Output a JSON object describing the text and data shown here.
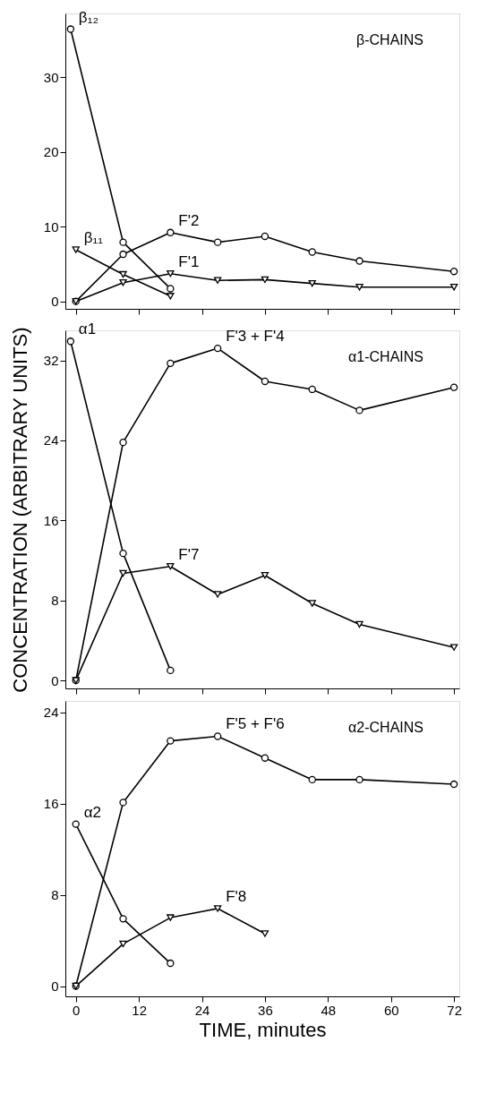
{
  "chart_data": [
    {
      "type": "line",
      "annotations": [
        "β-CHAINS"
      ],
      "xlim": [
        -2,
        73
      ],
      "xticks": [
        0,
        12,
        24,
        36,
        48,
        60,
        72
      ],
      "ylim": [
        -1,
        38.5
      ],
      "yticks": [
        0,
        10,
        20,
        30
      ],
      "tick_labels": "y",
      "line_style": "solid",
      "marker": "circle",
      "series": [
        {
          "name": "β₁₂",
          "color": "#000000",
          "x": [
            -1,
            9,
            18
          ],
          "values": [
            36.4,
            7.9,
            1.7
          ]
        },
        {
          "name": "β₁₁",
          "color": "#000000",
          "marker": "triangle",
          "x": [
            0,
            9,
            18
          ],
          "values": [
            6.9,
            3.6,
            0.7
          ]
        },
        {
          "name": "F'2",
          "color": "#000000",
          "x": [
            0,
            9,
            18,
            27,
            36,
            45,
            54,
            72
          ],
          "values": [
            0,
            6.3,
            9.2,
            7.9,
            8.7,
            6.6,
            5.4,
            4.0
          ]
        },
        {
          "name": "F'1",
          "color": "#000000",
          "marker": "triangle",
          "x": [
            0,
            9,
            18,
            27,
            36,
            45,
            54,
            72
          ],
          "values": [
            0,
            2.5,
            3.7,
            2.8,
            2.9,
            2.4,
            1.9,
            1.9
          ]
        }
      ]
    },
    {
      "type": "line",
      "annotations": [
        "α1-CHAINS"
      ],
      "ylabel": "CONCENTRATION (ARBITRARY UNITS)",
      "xlim": [
        -2,
        73
      ],
      "xticks": [
        0,
        12,
        24,
        36,
        48,
        60,
        72
      ],
      "ylim": [
        -0.8,
        35
      ],
      "yticks": [
        0,
        8,
        16,
        24,
        32
      ],
      "tick_labels": "y",
      "line_style": "solid",
      "marker": "circle",
      "series": [
        {
          "name": "α1",
          "color": "#000000",
          "x": [
            -1,
            9,
            18
          ],
          "values": [
            33.9,
            12.7,
            1.0
          ]
        },
        {
          "name": "F'3 + F'4",
          "color": "#000000",
          "x": [
            0,
            9,
            18,
            27,
            36,
            45,
            54,
            72
          ],
          "values": [
            0,
            23.8,
            31.7,
            33.2,
            29.9,
            29.1,
            27.0,
            29.3
          ]
        },
        {
          "name": "F'7",
          "color": "#000000",
          "marker": "triangle",
          "x": [
            0,
            9,
            18,
            27,
            36,
            45,
            54,
            72
          ],
          "values": [
            0,
            10.7,
            11.4,
            8.6,
            10.5,
            7.7,
            5.6,
            3.3
          ]
        }
      ]
    },
    {
      "type": "line",
      "annotations": [
        "α2-CHAINS"
      ],
      "xlabel": "TIME, minutes",
      "xlim": [
        -2,
        73
      ],
      "xticks": [
        0,
        12,
        24,
        36,
        48,
        60,
        72
      ],
      "ylim": [
        -0.9,
        25
      ],
      "yticks": [
        0,
        8,
        16,
        24
      ],
      "line_style": "solid",
      "marker": "circle",
      "series": [
        {
          "name": "α2",
          "color": "#000000",
          "x": [
            0,
            9,
            18
          ],
          "values": [
            14.2,
            5.9,
            2.0
          ]
        },
        {
          "name": "F'5 + F'6",
          "color": "#000000",
          "x": [
            0,
            9,
            18,
            27,
            36,
            45,
            54,
            72
          ],
          "values": [
            0,
            16.1,
            21.5,
            21.9,
            20.0,
            18.1,
            18.1,
            17.7
          ]
        },
        {
          "name": "F'8",
          "color": "#000000",
          "marker": "triangle",
          "x": [
            0,
            9,
            18,
            27,
            36
          ],
          "values": [
            0,
            3.7,
            6.0,
            6.8,
            4.6
          ]
        }
      ]
    }
  ]
}
